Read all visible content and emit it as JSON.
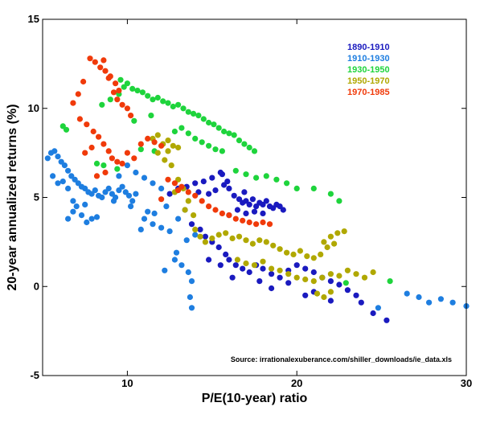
{
  "chart_data": {
    "type": "scatter",
    "xlabel": "P/E(10-year) ratio",
    "ylabel": "20-year annualized returns (%)",
    "xlim": [
      5,
      30
    ],
    "ylim": [
      -5,
      15
    ],
    "xticks": [
      10,
      20,
      30
    ],
    "yticks": [
      -5,
      0,
      5,
      10,
      15
    ],
    "grid": false,
    "legend_position": "top-right",
    "annotation": "Source: irrationalexuberance.com/shiller_downloads/ie_data.xls",
    "series": [
      {
        "name": "1890-1910",
        "color": "#1a1abf",
        "points": [
          [
            13.5,
            5.6
          ],
          [
            14,
            5.8
          ],
          [
            14.5,
            5.9
          ],
          [
            15,
            6.1
          ],
          [
            15.5,
            6.4
          ],
          [
            15.6,
            6.3
          ],
          [
            15.2,
            5.4
          ],
          [
            14.8,
            5.2
          ],
          [
            15.9,
            5.9
          ],
          [
            16,
            5.5
          ],
          [
            16.3,
            5.1
          ],
          [
            16.6,
            4.9
          ],
          [
            16.8,
            4.7
          ],
          [
            17,
            4.8
          ],
          [
            17.2,
            4.6
          ],
          [
            17.4,
            4.9
          ],
          [
            17.6,
            4.5
          ],
          [
            17.8,
            4.7
          ],
          [
            18,
            4.6
          ],
          [
            18.2,
            4.8
          ],
          [
            18.4,
            4.5
          ],
          [
            18.6,
            4.4
          ],
          [
            18.8,
            4.6
          ],
          [
            19,
            4.5
          ],
          [
            19.2,
            4.3
          ],
          [
            16.5,
            4.3
          ],
          [
            17,
            4.1
          ],
          [
            17.5,
            4.2
          ],
          [
            18,
            4.1
          ],
          [
            16,
            4
          ],
          [
            13.8,
            3.5
          ],
          [
            14.3,
            3.2
          ],
          [
            14.6,
            2.8
          ],
          [
            15,
            2.5
          ],
          [
            15.4,
            2.2
          ],
          [
            15.8,
            1.8
          ],
          [
            16,
            1.5
          ],
          [
            16.4,
            1.2
          ],
          [
            16.8,
            1
          ],
          [
            17.2,
            0.8
          ],
          [
            17.6,
            1.2
          ],
          [
            18,
            1
          ],
          [
            18.5,
            0.7
          ],
          [
            19,
            0.5
          ],
          [
            19.5,
            0.9
          ],
          [
            20,
            1.2
          ],
          [
            20.5,
            1
          ],
          [
            21,
            0.8
          ],
          [
            21.5,
            0.5
          ],
          [
            22,
            0.3
          ],
          [
            22.5,
            0.1
          ],
          [
            23,
            -0.2
          ],
          [
            23.5,
            -0.5
          ],
          [
            22,
            -0.8
          ],
          [
            21,
            -0.3
          ],
          [
            20.5,
            -0.5
          ],
          [
            19.5,
            0.2
          ],
          [
            18.5,
            -0.1
          ],
          [
            15.5,
            1.2
          ],
          [
            14.8,
            1.5
          ],
          [
            24.5,
            -1.5
          ],
          [
            25.3,
            -1.9
          ],
          [
            23.8,
            -0.9
          ],
          [
            16.2,
            0.5
          ],
          [
            17.8,
            0.3
          ],
          [
            12.5,
            5.2
          ],
          [
            13,
            5.5
          ],
          [
            14.2,
            5.3
          ],
          [
            15.7,
            5.7
          ],
          [
            16.9,
            5.3
          ]
        ]
      },
      {
        "name": "1910-1930",
        "color": "#1e7ee0",
        "points": [
          [
            5.3,
            7.2
          ],
          [
            5.5,
            7.5
          ],
          [
            5.7,
            7.6
          ],
          [
            5.9,
            7.3
          ],
          [
            6.1,
            7
          ],
          [
            6.3,
            6.8
          ],
          [
            6.5,
            6.5
          ],
          [
            6.7,
            6.2
          ],
          [
            6.9,
            6
          ],
          [
            7.1,
            5.8
          ],
          [
            7.3,
            5.6
          ],
          [
            7.5,
            5.5
          ],
          [
            7.7,
            5.3
          ],
          [
            7.9,
            5.2
          ],
          [
            8.1,
            5.4
          ],
          [
            8.3,
            5.1
          ],
          [
            8.5,
            5
          ],
          [
            8.7,
            5.3
          ],
          [
            8.9,
            5.5
          ],
          [
            9.1,
            5.2
          ],
          [
            9.3,
            5
          ],
          [
            9.5,
            5.4
          ],
          [
            9.7,
            5.6
          ],
          [
            9.9,
            5.3
          ],
          [
            10.1,
            5.1
          ],
          [
            10.3,
            4.8
          ],
          [
            10.5,
            5.2
          ],
          [
            5.6,
            6.2
          ],
          [
            5.9,
            5.8
          ],
          [
            6.2,
            5.9
          ],
          [
            6.5,
            5.5
          ],
          [
            6.8,
            4.8
          ],
          [
            7,
            4.5
          ],
          [
            7.3,
            4
          ],
          [
            7.6,
            3.6
          ],
          [
            7.9,
            3.8
          ],
          [
            8.2,
            3.9
          ],
          [
            6.5,
            3.8
          ],
          [
            6.8,
            4.2
          ],
          [
            7.5,
            4.6
          ],
          [
            11,
            3.8
          ],
          [
            11.5,
            3.5
          ],
          [
            12,
            3.3
          ],
          [
            12.5,
            3.1
          ],
          [
            11.2,
            4.2
          ],
          [
            10.8,
            3.2
          ],
          [
            12.8,
            1.5
          ],
          [
            13.2,
            1.2
          ],
          [
            13.6,
            0.8
          ],
          [
            13.8,
            0.3
          ],
          [
            13.7,
            -0.6
          ],
          [
            13.8,
            -1.2
          ],
          [
            12.2,
            0.9
          ],
          [
            12.9,
            1.9
          ],
          [
            13.5,
            2.6
          ],
          [
            14,
            2.9
          ],
          [
            13,
            3.8
          ],
          [
            13.4,
            4.3
          ],
          [
            11.6,
            4.1
          ],
          [
            12.3,
            4.5
          ],
          [
            9.5,
            6.2
          ],
          [
            10,
            6.8
          ],
          [
            10.5,
            6.4
          ],
          [
            11,
            6.1
          ],
          [
            11.5,
            5.8
          ],
          [
            12,
            5.5
          ],
          [
            26.5,
            -0.4
          ],
          [
            27.2,
            -0.6
          ],
          [
            27.8,
            -0.9
          ],
          [
            28.5,
            -0.7
          ],
          [
            29.2,
            -0.9
          ],
          [
            30,
            -1.1
          ],
          [
            24.8,
            -1.2
          ],
          [
            9.2,
            4.8
          ],
          [
            10.2,
            4.5
          ]
        ]
      },
      {
        "name": "1930-1950",
        "color": "#1ed43c",
        "points": [
          [
            6.2,
            9
          ],
          [
            6.4,
            8.8
          ],
          [
            8.5,
            10.2
          ],
          [
            9,
            10.5
          ],
          [
            9.5,
            10.8
          ],
          [
            9.8,
            11.2
          ],
          [
            10,
            11.4
          ],
          [
            10.3,
            11.1
          ],
          [
            10.6,
            11
          ],
          [
            10.9,
            10.9
          ],
          [
            11.2,
            10.7
          ],
          [
            11.5,
            10.5
          ],
          [
            11.8,
            10.6
          ],
          [
            12.1,
            10.4
          ],
          [
            12.4,
            10.3
          ],
          [
            12.7,
            10.1
          ],
          [
            13,
            10.2
          ],
          [
            13.3,
            10
          ],
          [
            13.6,
            9.8
          ],
          [
            13.9,
            9.7
          ],
          [
            14.2,
            9.6
          ],
          [
            14.5,
            9.4
          ],
          [
            14.8,
            9.2
          ],
          [
            15.1,
            9.1
          ],
          [
            15.4,
            8.9
          ],
          [
            15.7,
            8.7
          ],
          [
            16,
            8.6
          ],
          [
            16.3,
            8.5
          ],
          [
            16.6,
            8.2
          ],
          [
            16.9,
            8
          ],
          [
            17.2,
            7.8
          ],
          [
            17.5,
            7.6
          ],
          [
            12.8,
            8.7
          ],
          [
            13.2,
            8.9
          ],
          [
            13.6,
            8.6
          ],
          [
            14,
            8.3
          ],
          [
            14.4,
            8.1
          ],
          [
            14.8,
            7.9
          ],
          [
            15.2,
            7.7
          ],
          [
            15.6,
            7.6
          ],
          [
            16.4,
            6.5
          ],
          [
            17,
            6.3
          ],
          [
            17.6,
            6.1
          ],
          [
            18.2,
            6.2
          ],
          [
            18.8,
            6
          ],
          [
            19.4,
            5.8
          ],
          [
            20,
            5.5
          ],
          [
            21,
            5.5
          ],
          [
            22,
            5.2
          ],
          [
            22.5,
            4.8
          ],
          [
            8.2,
            6.9
          ],
          [
            8.6,
            6.8
          ],
          [
            9.4,
            6.6
          ],
          [
            10.8,
            7.7
          ],
          [
            11.6,
            7.6
          ],
          [
            10.4,
            9.3
          ],
          [
            11.4,
            9.6
          ],
          [
            25.5,
            0.3
          ],
          [
            22.9,
            0.2
          ],
          [
            9.6,
            11.6
          ]
        ]
      },
      {
        "name": "1950-1970",
        "color": "#b0a800",
        "points": [
          [
            11.5,
            8.3
          ],
          [
            11.8,
            8.5
          ],
          [
            12.1,
            8
          ],
          [
            12.4,
            8.2
          ],
          [
            12.7,
            7.9
          ],
          [
            13,
            7.8
          ],
          [
            12.4,
            7.6
          ],
          [
            11.8,
            7.5
          ],
          [
            12.2,
            7.1
          ],
          [
            12.6,
            6.8
          ],
          [
            13,
            6
          ],
          [
            13.3,
            5.5
          ],
          [
            13.6,
            4.8
          ],
          [
            13.9,
            4
          ],
          [
            14,
            3.2
          ],
          [
            14.3,
            2.8
          ],
          [
            14.6,
            2.5
          ],
          [
            15,
            2.7
          ],
          [
            15.4,
            2.9
          ],
          [
            15.8,
            3
          ],
          [
            16.2,
            2.7
          ],
          [
            16.6,
            2.8
          ],
          [
            17,
            2.6
          ],
          [
            17.4,
            2.4
          ],
          [
            17.8,
            2.6
          ],
          [
            18.2,
            2.5
          ],
          [
            18.6,
            2.3
          ],
          [
            19,
            2.1
          ],
          [
            19.4,
            1.9
          ],
          [
            19.8,
            1.8
          ],
          [
            20.2,
            2
          ],
          [
            20.6,
            1.7
          ],
          [
            21,
            1.6
          ],
          [
            21.4,
            1.8
          ],
          [
            21.8,
            2.2
          ],
          [
            22.2,
            2.4
          ],
          [
            22,
            2.8
          ],
          [
            21.6,
            2.5
          ],
          [
            22.4,
            3
          ],
          [
            22.8,
            3.1
          ],
          [
            16.5,
            1.5
          ],
          [
            17,
            1.3
          ],
          [
            17.5,
            1.2
          ],
          [
            18,
            1.4
          ],
          [
            18.5,
            1
          ],
          [
            19,
            0.9
          ],
          [
            19.5,
            0.7
          ],
          [
            20,
            0.5
          ],
          [
            20.5,
            0.4
          ],
          [
            21,
            0.3
          ],
          [
            21.5,
            0.5
          ],
          [
            22,
            0.7
          ],
          [
            22.5,
            0.6
          ],
          [
            23,
            0.9
          ],
          [
            23.5,
            0.7
          ],
          [
            24,
            0.5
          ],
          [
            24.5,
            0.8
          ],
          [
            21.2,
            -0.4
          ],
          [
            21.6,
            -0.6
          ],
          [
            22,
            -0.3
          ],
          [
            12.8,
            5.3
          ],
          [
            13.4,
            4.3
          ]
        ]
      },
      {
        "name": "1970-1985",
        "color": "#f03a0a",
        "points": [
          [
            6.8,
            10.3
          ],
          [
            7.1,
            10.8
          ],
          [
            7.4,
            11.5
          ],
          [
            7.8,
            12.8
          ],
          [
            8.1,
            12.6
          ],
          [
            8.4,
            12.3
          ],
          [
            8.7,
            12.1
          ],
          [
            9,
            11.8
          ],
          [
            9.3,
            11.4
          ],
          [
            9.5,
            11
          ],
          [
            8.6,
            12.7
          ],
          [
            8.9,
            11.7
          ],
          [
            9.2,
            10.9
          ],
          [
            9.4,
            10.5
          ],
          [
            9.7,
            10.2
          ],
          [
            10,
            10
          ],
          [
            10.2,
            9.6
          ],
          [
            7.2,
            9.4
          ],
          [
            7.6,
            9.1
          ],
          [
            8,
            8.7
          ],
          [
            8.3,
            8.4
          ],
          [
            8.6,
            8
          ],
          [
            8.9,
            7.6
          ],
          [
            9.1,
            7.2
          ],
          [
            9.4,
            7
          ],
          [
            9.7,
            6.9
          ],
          [
            10,
            7.5
          ],
          [
            10.4,
            7.2
          ],
          [
            10.8,
            8
          ],
          [
            11.2,
            8.3
          ],
          [
            11.6,
            8.1
          ],
          [
            12,
            7.9
          ],
          [
            12.4,
            6
          ],
          [
            12.8,
            5.8
          ],
          [
            13.2,
            5.6
          ],
          [
            13.6,
            5.3
          ],
          [
            14,
            5.1
          ],
          [
            14.4,
            4.8
          ],
          [
            14.8,
            4.5
          ],
          [
            15.2,
            4.3
          ],
          [
            15.6,
            4.1
          ],
          [
            16,
            4
          ],
          [
            16.4,
            3.8
          ],
          [
            16.8,
            3.7
          ],
          [
            17.2,
            3.6
          ],
          [
            17.6,
            3.5
          ],
          [
            18,
            3.6
          ],
          [
            18.4,
            3.5
          ],
          [
            12,
            4.9
          ],
          [
            13,
            5.4
          ],
          [
            7.5,
            7.5
          ],
          [
            7.9,
            7.8
          ],
          [
            8.2,
            6.2
          ],
          [
            8.7,
            6.4
          ]
        ]
      }
    ]
  }
}
